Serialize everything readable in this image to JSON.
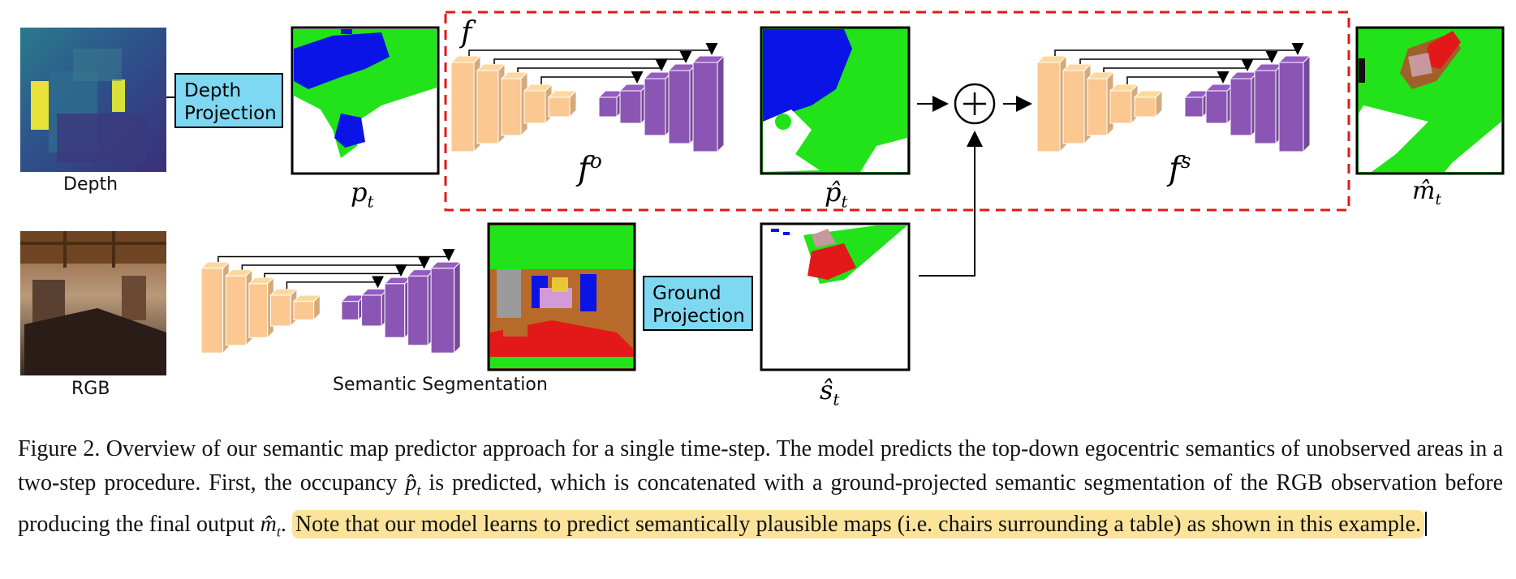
{
  "figure": {
    "labels": {
      "depth": "Depth",
      "rgb": "RGB",
      "semantic_segmentation": "Semantic Segmentation",
      "depth_projection": "Depth Projection",
      "ground_projection": "Ground Projection"
    },
    "math": {
      "f": "f",
      "f_o": "f",
      "f_o_sup": "o",
      "f_s": "f",
      "f_s_sup": "s",
      "p_t": "p",
      "p_t_sub": "t",
      "p_hat_t": "p̂",
      "p_hat_t_sub": "t",
      "m_hat_t": "m̂",
      "m_hat_t_sub": "t",
      "s_hat_t": "ŝ",
      "s_hat_t_sub": "t",
      "concat_symbol": "+"
    },
    "colors": {
      "encoder": "#fbc891",
      "decoder": "#8b55b4",
      "occupied": "#0a14e6",
      "free": "#22e31a",
      "highlight": "#fbe49a",
      "projection_box": "#7fd8f2",
      "dashed_frame": "#e31919"
    }
  },
  "caption": {
    "main": "Figure 2. Overview of our semantic map predictor approach for a single time-step. The model predicts the top-down egocentric semantics of unobserved areas in a two-step procedure. First, the occupancy ",
    "p_hat": "p̂",
    "p_sub": "t",
    "mid": " is predicted, which is concatenated with a ground-projected semantic segmentation of the RGB observation before producing the final output ",
    "m_hat": "m̂",
    "m_sub": "t",
    "end": ". ",
    "highlighted": "Note that our model learns to predict semantically plausible maps (i.e. chairs surrounding a table) as shown in this example."
  }
}
